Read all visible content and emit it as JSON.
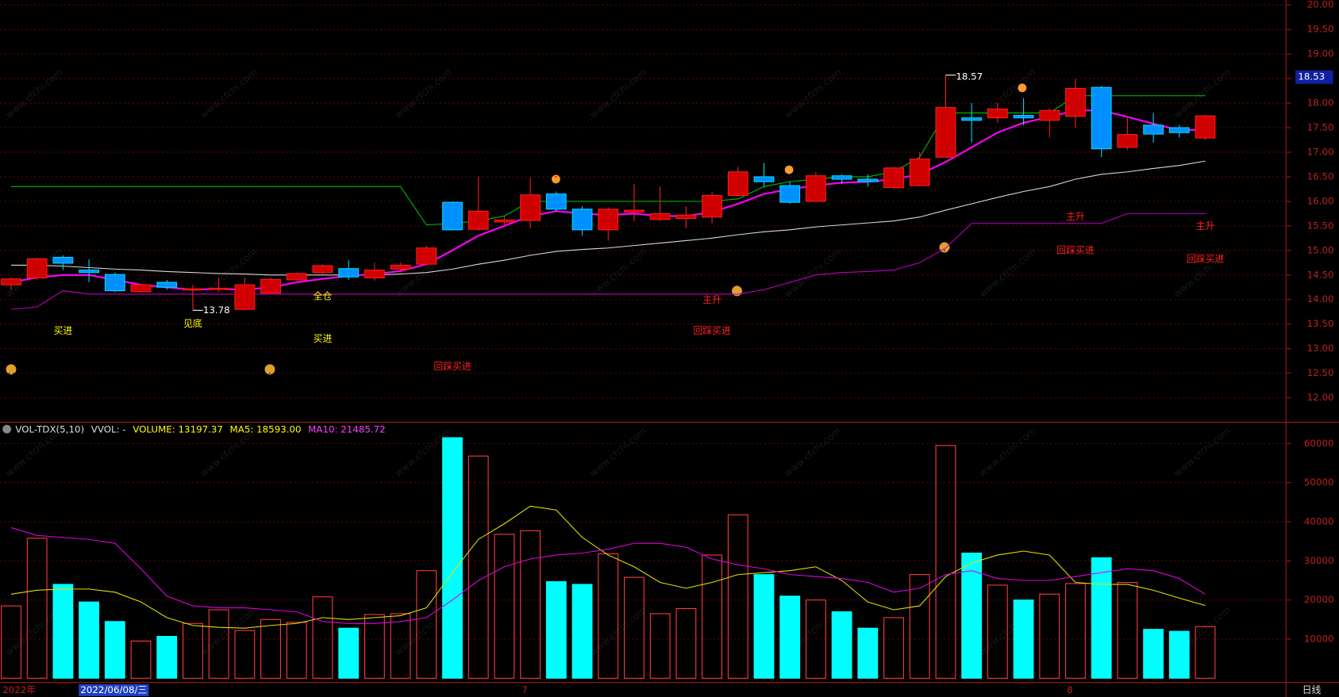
{
  "chart_data": [
    {
      "type": "candlestick",
      "ylim": [
        11.5,
        20.1
      ],
      "yticks": [
        {
          "value": 12,
          "label": "12.00"
        },
        {
          "value": 12.5,
          "label": "12.50"
        },
        {
          "value": 13,
          "label": "13.00"
        },
        {
          "value": 13.5,
          "label": "13.50"
        },
        {
          "value": 14,
          "label": "14.00"
        },
        {
          "value": 14.5,
          "label": "14.50"
        },
        {
          "value": 15,
          "label": "15.00"
        },
        {
          "value": 15.5,
          "label": "15.50"
        },
        {
          "value": 16,
          "label": "16.00"
        },
        {
          "value": 16.5,
          "label": "16.50"
        },
        {
          "value": 17,
          "label": "17.00"
        },
        {
          "value": 17.5,
          "label": "17.50"
        },
        {
          "value": 18,
          "label": "18.00"
        },
        {
          "value": 18.5,
          "label": "18.50"
        },
        {
          "value": 19,
          "label": "19.00"
        },
        {
          "value": 19.5,
          "label": "19.50"
        },
        {
          "value": 20,
          "label": "20.00"
        }
      ],
      "current_price": 18.53,
      "up_color": "#ff1a1a",
      "down_color": "#00d8ff",
      "open": [
        14.3,
        14.44,
        14.86,
        14.6,
        14.51,
        14.16,
        14.35,
        14.2,
        14.21,
        13.8,
        14.13,
        14.4,
        14.55,
        14.63,
        14.44,
        14.62,
        14.72,
        15.98,
        15.43,
        15.58,
        15.61,
        16.15,
        15.84,
        15.42,
        15.78,
        15.63,
        15.65,
        15.68,
        16.12,
        16.5,
        16.32,
        16.0,
        16.52,
        16.45,
        16.28,
        16.32,
        16.9,
        17.7,
        17.7,
        17.75,
        17.65,
        17.73,
        18.32,
        17.1,
        17.55,
        17.5,
        17.29
      ],
      "high": [
        14.45,
        14.85,
        14.9,
        14.82,
        14.55,
        14.32,
        14.4,
        14.3,
        14.45,
        14.45,
        14.45,
        14.55,
        14.72,
        14.8,
        14.75,
        14.75,
        15.1,
        16.0,
        16.5,
        15.7,
        16.48,
        16.2,
        15.9,
        15.88,
        16.35,
        16.3,
        15.9,
        16.2,
        16.7,
        16.78,
        16.4,
        16.6,
        16.55,
        16.55,
        16.7,
        17.0,
        18.57,
        18.0,
        18.0,
        18.1,
        17.9,
        18.5,
        18.35,
        17.7,
        17.8,
        17.55,
        17.76
      ],
      "low": [
        14.2,
        14.4,
        14.6,
        14.35,
        14.15,
        14.14,
        14.2,
        13.78,
        14.15,
        13.78,
        14.1,
        14.38,
        14.5,
        14.4,
        14.38,
        14.55,
        14.7,
        15.4,
        15.4,
        15.5,
        15.45,
        15.8,
        15.3,
        15.2,
        15.6,
        15.6,
        15.45,
        15.55,
        16.1,
        16.3,
        15.95,
        16.0,
        16.35,
        16.3,
        16.25,
        16.3,
        16.9,
        17.2,
        17.6,
        17.55,
        17.3,
        17.5,
        16.9,
        17.05,
        17.2,
        17.3,
        17.25
      ],
      "close": [
        14.42,
        14.83,
        14.74,
        14.55,
        14.18,
        14.3,
        14.25,
        14.22,
        14.23,
        14.3,
        14.41,
        14.53,
        14.69,
        14.46,
        14.6,
        14.7,
        15.05,
        15.42,
        15.8,
        15.62,
        16.13,
        15.84,
        15.42,
        15.84,
        15.82,
        15.75,
        15.72,
        16.12,
        16.6,
        16.4,
        15.98,
        16.52,
        16.45,
        16.4,
        16.68,
        16.86,
        17.91,
        17.65,
        17.88,
        17.7,
        17.85,
        18.3,
        17.07,
        17.36,
        17.37,
        17.4,
        17.74
      ],
      "series": [
        {
          "color": "#d8d8d8",
          "values": [
            14.7,
            14.7,
            14.68,
            14.65,
            14.62,
            14.6,
            14.57,
            14.55,
            14.53,
            14.52,
            14.5,
            14.5,
            14.5,
            14.5,
            14.5,
            14.52,
            14.55,
            14.62,
            14.72,
            14.8,
            14.9,
            14.98,
            15.02,
            15.05,
            15.1,
            15.15,
            15.2,
            15.25,
            15.32,
            15.38,
            15.42,
            15.48,
            15.52,
            15.56,
            15.6,
            15.68,
            15.82,
            15.95,
            16.08,
            16.2,
            16.3,
            16.45,
            16.55,
            16.6,
            16.67,
            16.73,
            16.82
          ]
        },
        {
          "color": "#c000c0",
          "values": [
            13.8,
            13.85,
            14.18,
            14.11,
            14.11,
            14.11,
            14.11,
            14.11,
            14.11,
            14.11,
            14.11,
            14.11,
            14.11,
            14.11,
            14.11,
            14.11,
            14.11,
            14.11,
            14.11,
            14.11,
            14.11,
            14.11,
            14.11,
            14.11,
            14.11,
            14.11,
            14.11,
            14.11,
            14.11,
            14.2,
            14.35,
            14.5,
            14.55,
            14.57,
            14.6,
            14.75,
            15.05,
            15.55,
            15.55,
            15.55,
            15.55,
            15.55,
            15.55,
            15.75,
            15.75,
            15.75,
            15.75
          ]
        },
        {
          "color": "#00c000",
          "values": [
            16.3,
            16.3,
            16.3,
            16.3,
            16.3,
            16.3,
            16.3,
            16.3,
            16.3,
            16.3,
            16.3,
            16.3,
            16.3,
            16.3,
            16.3,
            16.3,
            15.52,
            15.55,
            15.6,
            15.7,
            16.0,
            16.0,
            16.0,
            16.0,
            16.0,
            16.0,
            16.0,
            16.0,
            16.05,
            16.3,
            16.4,
            16.45,
            16.5,
            16.5,
            16.6,
            16.9,
            17.8,
            17.8,
            17.8,
            17.8,
            17.8,
            18.15,
            18.15,
            18.15,
            18.15,
            18.15,
            18.15
          ]
        },
        {
          "color": "#ff00ff",
          "values": [
            14.35,
            14.45,
            14.5,
            14.5,
            14.4,
            14.3,
            14.25,
            14.2,
            14.22,
            14.2,
            14.25,
            14.35,
            14.42,
            14.48,
            14.52,
            14.58,
            14.72,
            15.0,
            15.3,
            15.5,
            15.7,
            15.8,
            15.75,
            15.72,
            15.75,
            15.7,
            15.7,
            15.78,
            15.95,
            16.15,
            16.25,
            16.32,
            16.38,
            16.4,
            16.45,
            16.55,
            16.8,
            17.1,
            17.4,
            17.6,
            17.72,
            17.85,
            17.85,
            17.72,
            17.58,
            17.45,
            17.45
          ]
        }
      ],
      "max_marker": {
        "index": 36,
        "value": 18.57
      },
      "min_marker": {
        "index": 7,
        "value": 13.78
      },
      "annotations": [
        {
          "text": "买进",
          "index": 2,
          "price": 13.36,
          "color": "#ffff00"
        },
        {
          "text": "见底",
          "index": 7,
          "price": 13.5,
          "color": "#ffff00"
        },
        {
          "text": "全仓",
          "index": 12,
          "price": 14.06,
          "color": "#ffff00"
        },
        {
          "text": "买进",
          "index": 12,
          "price": 13.2,
          "color": "#ffff00"
        },
        {
          "text": "回踩买进",
          "index": 17,
          "price": 12.63,
          "color": "#ff2020"
        },
        {
          "text": "主升",
          "index": 27,
          "price": 13.99,
          "color": "#ff2020"
        },
        {
          "text": "回踩买进",
          "index": 27,
          "price": 13.36,
          "color": "#ff2020"
        },
        {
          "text": "主升",
          "index": 41,
          "price": 15.68,
          "color": "#ff2020"
        },
        {
          "text": "回踩买进",
          "index": 41,
          "price": 15.0,
          "color": "#ff2020"
        },
        {
          "text": "主升",
          "index": 46,
          "price": 15.49,
          "color": "#ff2020"
        },
        {
          "text": "回踩买进",
          "index": 46,
          "price": 14.82,
          "color": "#ff2020"
        }
      ],
      "watermark": "www.cfchi.com"
    },
    {
      "type": "bar",
      "legend": [
        {
          "text": "VOL-TDX(5,10)",
          "color": "#dddddd"
        },
        {
          "text": "VVOL: -",
          "color": "#dddddd"
        },
        {
          "text": "VOLUME: 13197.37",
          "color": "#ffff00"
        },
        {
          "text": "MA5: 18593.00",
          "color": "#ffff00"
        },
        {
          "text": "MA10: 21485.72",
          "color": "#ff40ff"
        }
      ],
      "ylim": [
        0,
        65000
      ],
      "yticks": [
        10000,
        20000,
        30000,
        40000,
        50000,
        60000
      ],
      "values": [
        18500,
        35800,
        24000,
        19500,
        14500,
        9500,
        10700,
        14000,
        17500,
        12200,
        15000,
        14300,
        20800,
        12800,
        16300,
        16500,
        27500,
        61500,
        56800,
        36800,
        37700,
        24700,
        24000,
        31800,
        25800,
        16500,
        17800,
        31500,
        41800,
        26500,
        21000,
        20000,
        17000,
        12800,
        15500,
        26500,
        59500,
        32000,
        23800,
        20000,
        21500,
        24200,
        30800,
        24500,
        12500,
        12000,
        13197.37
      ],
      "series": [
        {
          "color": "#e0e000",
          "values": [
            21500,
            22500,
            22800,
            22800,
            22000,
            19500,
            15500,
            13500,
            13000,
            12800,
            13500,
            14000,
            15500,
            15000,
            15500,
            16000,
            18000,
            27000,
            35500,
            39500,
            44000,
            43000,
            36000,
            31500,
            28500,
            24500,
            23000,
            24500,
            26500,
            27000,
            27500,
            28500,
            25000,
            19500,
            17500,
            18500,
            26000,
            29500,
            31500,
            32500,
            31500,
            24500,
            24000,
            24000,
            22500,
            20500,
            18593
          ]
        },
        {
          "color": "#e000e0",
          "values": [
            38500,
            36500,
            36000,
            35500,
            34500,
            28000,
            21000,
            18500,
            18000,
            18000,
            17500,
            17000,
            14500,
            14000,
            14000,
            14500,
            15500,
            20000,
            25000,
            28500,
            30500,
            31500,
            32000,
            33000,
            34500,
            34500,
            33500,
            30500,
            29000,
            28000,
            26500,
            26000,
            25500,
            24500,
            22000,
            23000,
            26500,
            27500,
            25500,
            25000,
            25000,
            26000,
            27000,
            28000,
            27500,
            25500,
            21485.72
          ]
        }
      ],
      "x_labels": [
        {
          "index": 0,
          "label": "2022年"
        },
        {
          "index": 3,
          "label": "2022/06/08/三"
        },
        {
          "index": 20,
          "label": "7"
        },
        {
          "index": 41,
          "label": "8"
        }
      ],
      "period": "日线"
    }
  ]
}
